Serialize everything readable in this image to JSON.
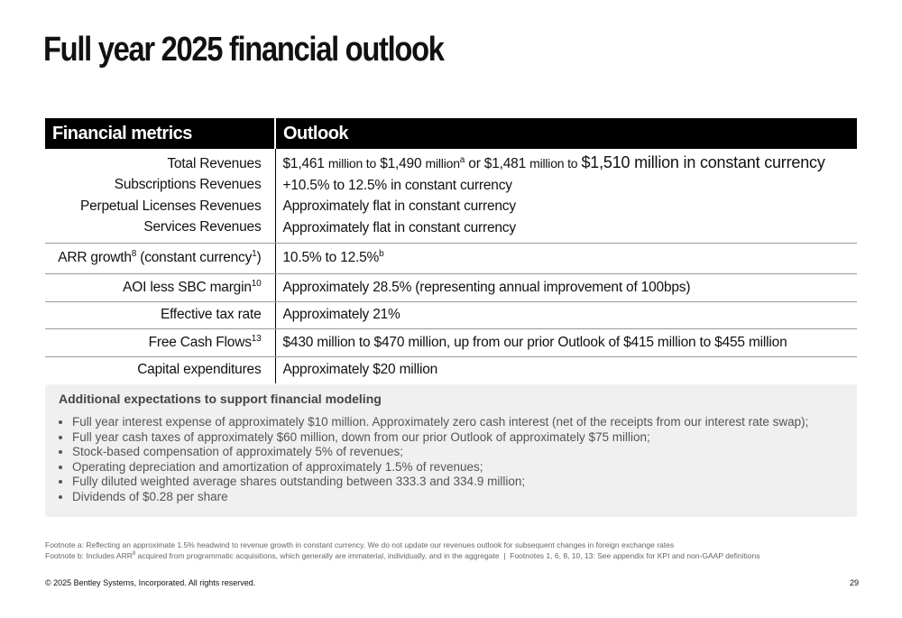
{
  "title": "Full year 2025 financial outlook",
  "table": {
    "headers": [
      "Financial metrics",
      "Outlook"
    ],
    "rows": [
      {
        "metric": [
          "Total Revenues",
          "Subscriptions Revenues",
          "Perpetual Licenses Revenues",
          "Services Revenues"
        ],
        "outlook": [
          [
            "$1,461",
            "million to",
            "$1,490",
            "million",
            "a",
            "or",
            "$1,481",
            "million to",
            "$1,510 million in constant currency"
          ],
          "+10.5% to 12.5% in constant currency",
          "Approximately flat in constant currency",
          "Approximately flat in constant currency"
        ]
      },
      {
        "metric": [
          "ARR growth",
          "8",
          "(constant currency",
          "1",
          ")"
        ],
        "outlook": [
          "10.5% to 12.5%",
          "b"
        ]
      },
      {
        "metric": [
          "AOI less SBC margin",
          "10"
        ],
        "outlook": "Approximately 28.5% (representing annual improvement of 100bps)"
      },
      {
        "metric": "Effective tax rate",
        "outlook": "Approximately 21%"
      },
      {
        "metric": [
          "Free Cash Flows",
          "13"
        ],
        "outlook": "$430 million to $470 million, up from our prior Outlook of $415 million to $455 million"
      },
      {
        "metric": "Capital expenditures",
        "outlook": "Approximately $20 million"
      }
    ]
  },
  "additional": {
    "title": "Additional expectations to support financial modeling",
    "items": [
      "Full year interest expense of approximately $10 million. Approximately zero cash interest (net of the receipts from our interest rate swap);",
      "Full year cash taxes of approximately $60 million, down from our prior Outlook of approximately $75 million;",
      "Stock-based compensation of approximately 5% of revenues;",
      "Operating depreciation and amortization of approximately 1.5% of revenues;",
      "Fully diluted weighted average shares outstanding between 333.3 and 334.9 million;",
      "Dividends of $0.28 per share"
    ]
  },
  "footnotes": {
    "a": "Footnote a: Reflecting an approximate 1.5% headwind to revenue growth in constant currency. We do not update our revenues outlook for subsequent changes in foreign exchange rates",
    "b": [
      "Footnote b: Includes ARR",
      "8",
      "acquired from programmatic acquisitions, which generally are immaterial, individually, and in the aggregate",
      "|",
      "Footnotes 1, 6, 8, 10, 13: See appendix for KPI and non-GAAP definitions"
    ]
  },
  "footer": {
    "copyright": "© 2025 Bentley Systems, Incorporated. All rights reserved.",
    "page": "29"
  }
}
